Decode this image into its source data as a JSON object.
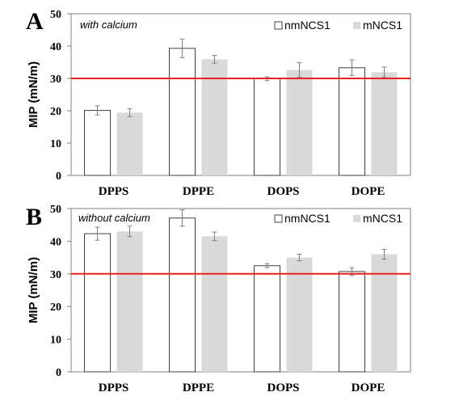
{
  "chart_data": [
    {
      "type": "bar",
      "panel": "A",
      "title": "with calcium",
      "ylabel": "MIP (mN/m)",
      "categories": [
        "DPPS",
        "DPPE",
        "DOPS",
        "DOPE"
      ],
      "ylim": [
        0,
        50
      ],
      "yticks": [
        "0",
        "10",
        "20",
        "30",
        "40",
        "50"
      ],
      "series": [
        {
          "name": "nmNCS1",
          "values": [
            20.1,
            39.3,
            29.9,
            33.3
          ],
          "errors": [
            1.4,
            2.9,
            0.6,
            2.4
          ],
          "color": "#ffffff"
        },
        {
          "name": "mNCS1",
          "values": [
            19.4,
            35.9,
            32.6,
            31.9
          ],
          "errors": [
            1.2,
            1.2,
            2.3,
            1.6
          ],
          "color": "#d9d9d9"
        }
      ],
      "reference_line": 30,
      "reference_color": "#e8231a",
      "legend_position": "top-right",
      "grid": false
    },
    {
      "type": "bar",
      "panel": "B",
      "title": "without calcium",
      "ylabel": "MIP (mN/m)",
      "categories": [
        "DPPS",
        "DPPE",
        "DOPS",
        "DOPE"
      ],
      "ylim": [
        0,
        50
      ],
      "yticks": [
        "0",
        "10",
        "20",
        "30",
        "40",
        "50"
      ],
      "series": [
        {
          "name": "nmNCS1",
          "values": [
            42.3,
            47.1,
            32.5,
            30.7
          ],
          "errors": [
            2.0,
            2.5,
            0.6,
            1.2
          ],
          "color": "#ffffff"
        },
        {
          "name": "mNCS1",
          "values": [
            43.0,
            41.5,
            35.0,
            36.0
          ],
          "errors": [
            1.6,
            1.3,
            1.0,
            1.5
          ],
          "color": "#d9d9d9"
        }
      ],
      "reference_line": 30,
      "reference_color": "#e8231a",
      "legend_position": "top-right",
      "grid": false
    }
  ]
}
